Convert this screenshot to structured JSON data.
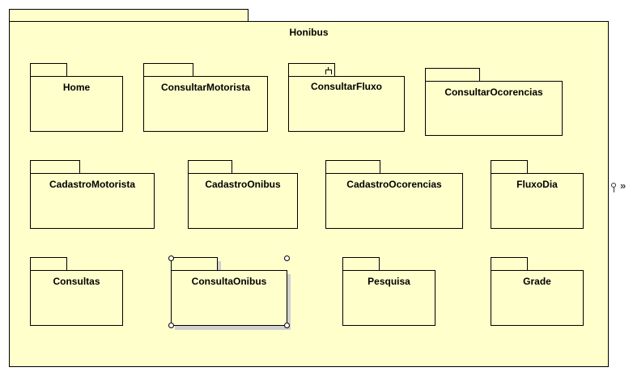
{
  "outer_package": {
    "name": "Honibus"
  },
  "packages": [
    {
      "name": "Home"
    },
    {
      "name": "ConsultarMotorista"
    },
    {
      "name": "ConsultarFluxo"
    },
    {
      "name": "ConsultarOcorencias"
    },
    {
      "name": "CadastroMotorista"
    },
    {
      "name": "CadastroOnibus"
    },
    {
      "name": "CadastroOcorencias"
    },
    {
      "name": "FluxoDia"
    },
    {
      "name": "Consultas"
    },
    {
      "name": "ConsultaOnibus"
    },
    {
      "name": "Pesquisa"
    },
    {
      "name": "Grade"
    }
  ],
  "colors": {
    "package_fill": "#ffffcc",
    "border": "#000000",
    "shadow": "#cfcfcf"
  },
  "icons": {
    "consultar_fluxo_marker": "fork-icon",
    "side_toolbar": [
      "pin-icon",
      "more-icon"
    ]
  },
  "selected_package": "ConsultaOnibus"
}
